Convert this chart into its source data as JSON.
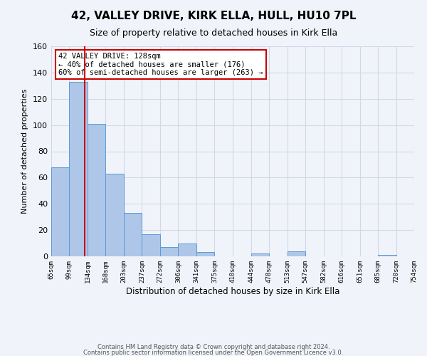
{
  "title": "42, VALLEY DRIVE, KIRK ELLA, HULL, HU10 7PL",
  "subtitle": "Size of property relative to detached houses in Kirk Ella",
  "xlabel": "Distribution of detached houses by size in Kirk Ella",
  "ylabel": "Number of detached properties",
  "bar_edges": [
    65,
    99,
    134,
    168,
    203,
    237,
    272,
    306,
    341,
    375,
    410,
    444,
    478,
    513,
    547,
    582,
    616,
    651,
    685,
    720,
    754
  ],
  "bar_heights": [
    68,
    133,
    101,
    63,
    33,
    17,
    7,
    10,
    3,
    0,
    0,
    2,
    0,
    4,
    0,
    0,
    0,
    0,
    1,
    0,
    0
  ],
  "bar_color": "#aec6e8",
  "bar_edgecolor": "#5b9bd5",
  "grid_color": "#d0d8e8",
  "background_color": "#f0f4fa",
  "vline_x": 128,
  "vline_color": "#cc0000",
  "annotation_text": "42 VALLEY DRIVE: 128sqm\n← 40% of detached houses are smaller (176)\n60% of semi-detached houses are larger (263) →",
  "annotation_box_edgecolor": "#cc0000",
  "annotation_box_facecolor": "white",
  "ylim": [
    0,
    160
  ],
  "yticks": [
    0,
    20,
    40,
    60,
    80,
    100,
    120,
    140,
    160
  ],
  "footer_line1": "Contains HM Land Registry data © Crown copyright and database right 2024.",
  "footer_line2": "Contains public sector information licensed under the Open Government Licence v3.0.",
  "tick_labels": [
    "65sqm",
    "99sqm",
    "134sqm",
    "168sqm",
    "203sqm",
    "237sqm",
    "272sqm",
    "306sqm",
    "341sqm",
    "375sqm",
    "410sqm",
    "444sqm",
    "478sqm",
    "513sqm",
    "547sqm",
    "582sqm",
    "616sqm",
    "651sqm",
    "685sqm",
    "720sqm",
    "754sqm"
  ],
  "title_fontsize": 11,
  "subtitle_fontsize": 9,
  "ylabel_fontsize": 8,
  "xlabel_fontsize": 8.5
}
